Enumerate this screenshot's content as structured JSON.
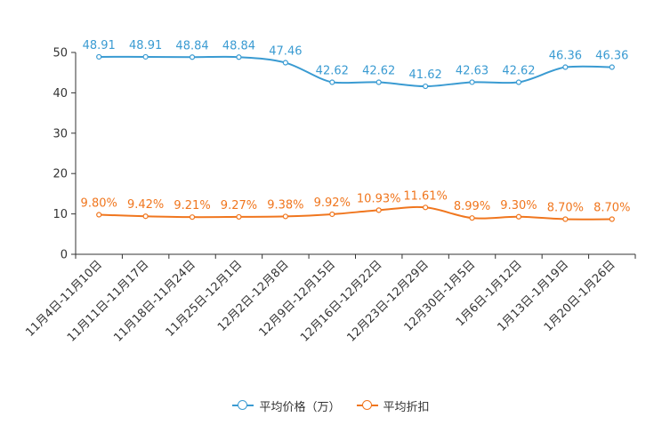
{
  "chart_data": {
    "type": "line",
    "title": "",
    "xlabel": "",
    "ylabel": "",
    "ylim": [
      0,
      50
    ],
    "yticks": [
      "0",
      "10",
      "20",
      "30",
      "40",
      "50"
    ],
    "categories": [
      "11月4日-11月10日",
      "11月11日-11月17日",
      "11月18日-11月24日",
      "11月25日-12月1日",
      "12月2日-12月8日",
      "12月9日-12月15日",
      "12月16日-12月22日",
      "12月23日-12月29日",
      "12月30日-1月5日",
      "1月6日-1月12日",
      "1月13日-1月19日",
      "1月20日-1月26日"
    ],
    "series": [
      {
        "name": "平均价格（万）",
        "color": "#3a9bd2",
        "values": [
          48.91,
          48.91,
          48.84,
          48.84,
          47.46,
          42.62,
          42.62,
          41.62,
          42.63,
          42.62,
          46.36,
          46.36
        ],
        "labels": [
          "48.91",
          "48.91",
          "48.84",
          "48.84",
          "47.46",
          "42.62",
          "42.62",
          "41.62",
          "42.63",
          "42.62",
          "46.36",
          "46.36"
        ]
      },
      {
        "name": "平均折扣",
        "color": "#f0761e",
        "values": [
          9.8,
          9.42,
          9.21,
          9.27,
          9.38,
          9.92,
          10.93,
          11.61,
          8.99,
          9.3,
          8.7,
          8.7
        ],
        "labels": [
          "9.80%",
          "9.42%",
          "9.21%",
          "9.27%",
          "9.38%",
          "9.92%",
          "10.93%",
          "11.61%",
          "8.99%",
          "9.30%",
          "8.70%",
          "8.70%"
        ]
      }
    ],
    "legend": "bottom"
  }
}
